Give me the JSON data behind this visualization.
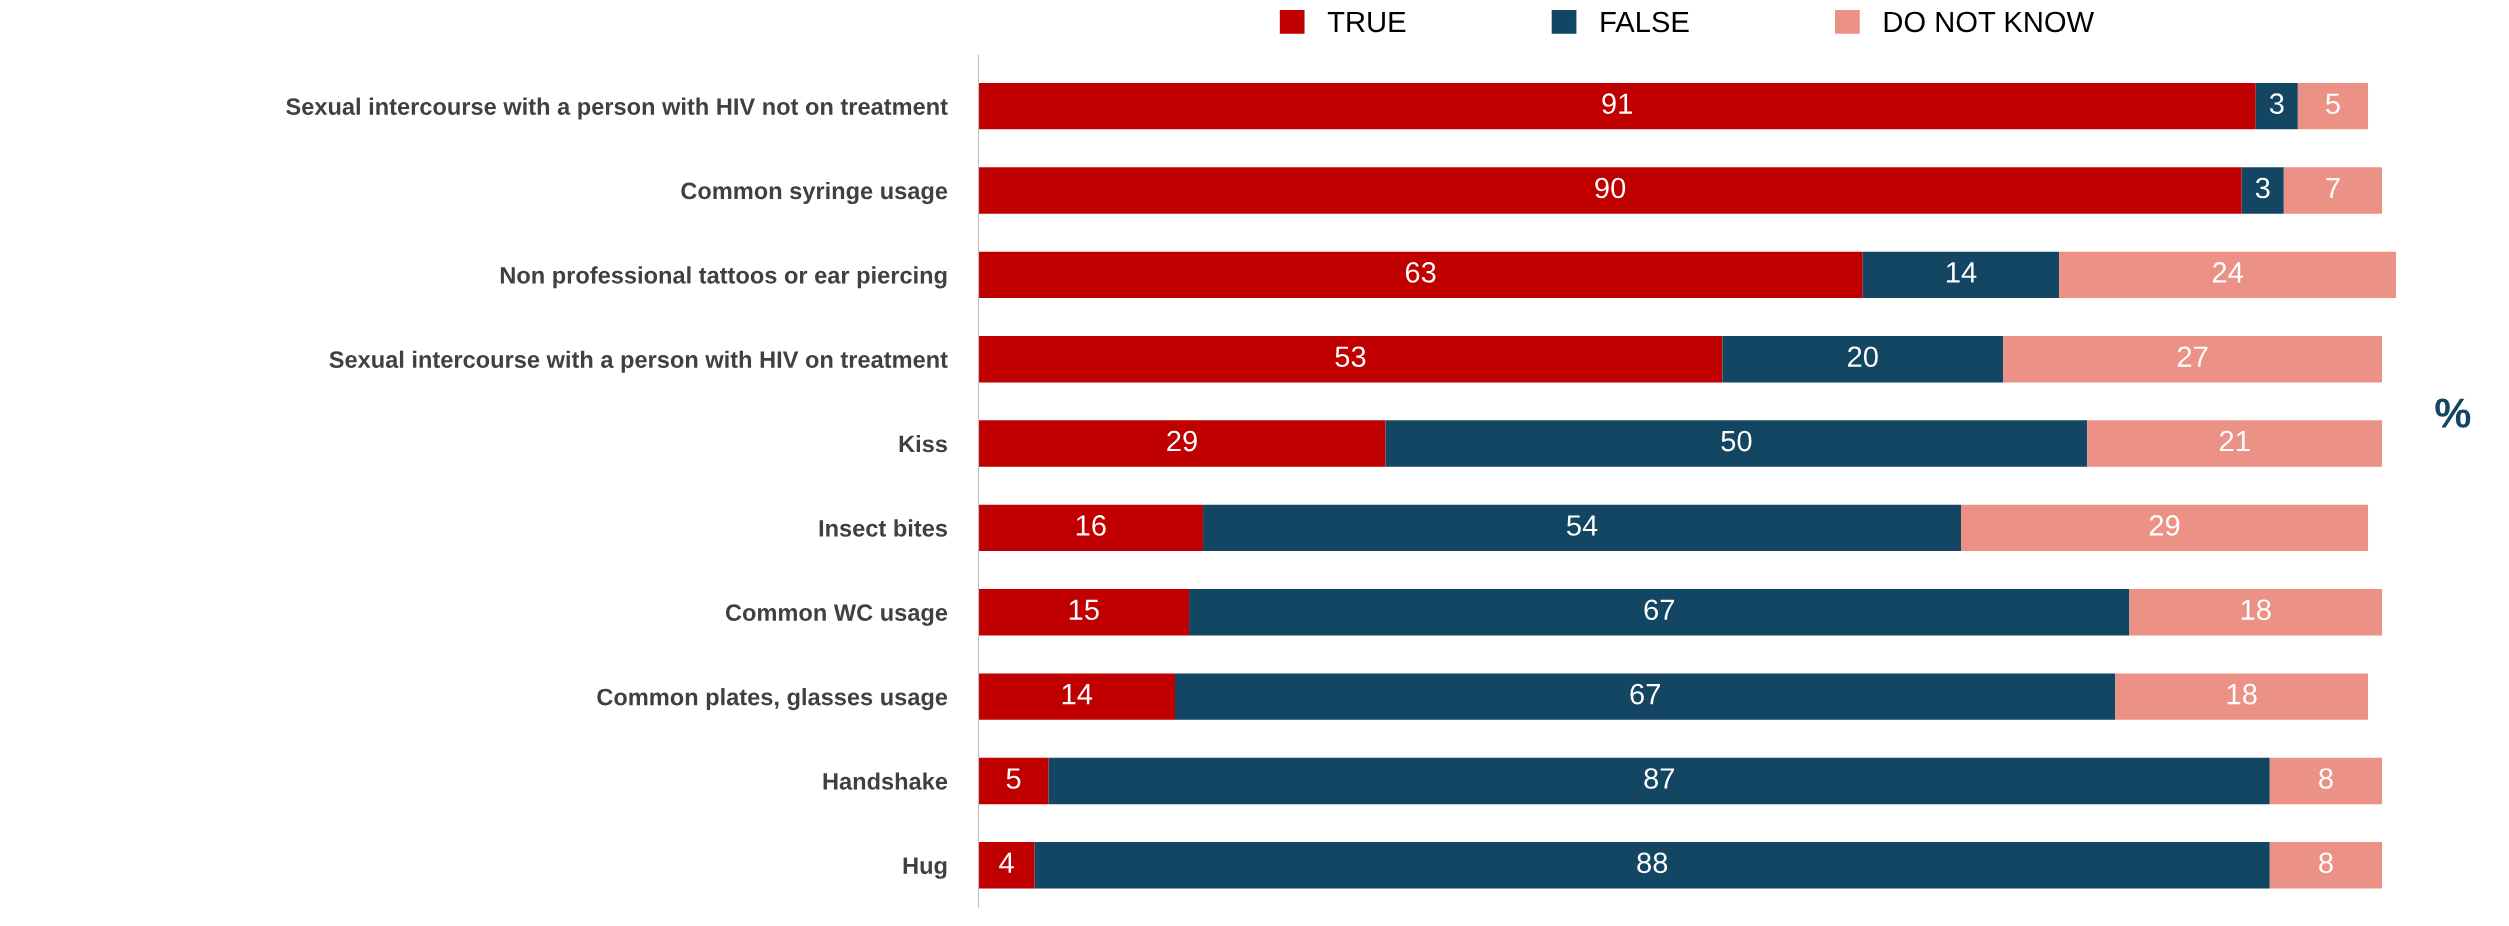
{
  "chart_data": {
    "type": "bar",
    "orientation": "horizontal",
    "stacked": true,
    "data_labels": true,
    "legend": "top",
    "grid": false,
    "categories": [
      "Sexual intercourse with a person with HIV not on treatment",
      "Common syringe usage",
      "Non professional tattoos or ear piercing",
      "Sexual intercourse with a person with HIV on treatment",
      "Kiss",
      "Insect bites",
      "Common WC usage",
      "Common plates, glasses usage",
      "Handshake",
      "Hug"
    ],
    "series": [
      {
        "name": "TRUE",
        "color": "#c00000",
        "values": [
          91,
          90,
          63,
          53,
          29,
          16,
          15,
          14,
          5,
          4
        ]
      },
      {
        "name": "FALSE",
        "color": "#124663",
        "values": [
          3,
          3,
          14,
          20,
          50,
          54,
          67,
          67,
          87,
          88
        ]
      },
      {
        "name": "DO NOT KNOW",
        "color": "#ec9185",
        "values": [
          5,
          7,
          24,
          27,
          21,
          29,
          18,
          18,
          8,
          8
        ]
      }
    ],
    "annotations": [
      "%"
    ]
  }
}
